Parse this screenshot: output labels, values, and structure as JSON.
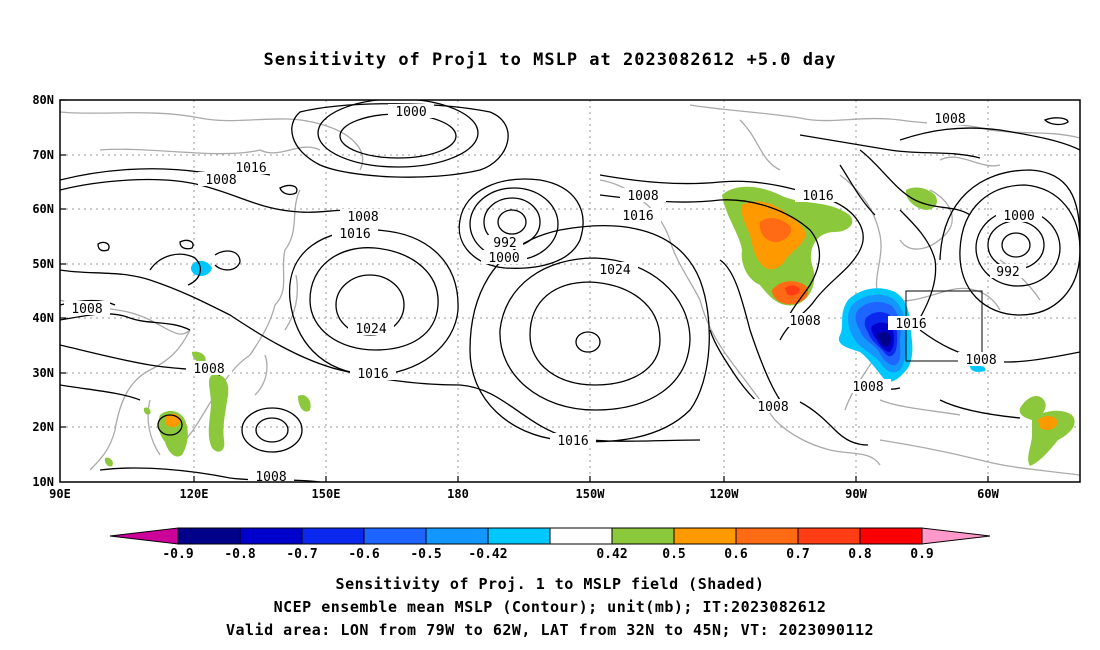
{
  "title": "Sensitivity of Proj1 to MSLP at 2023082612 +5.0 day",
  "map": {
    "lon_range": [
      "90E",
      "60W+"
    ],
    "lat_range": [
      "10N",
      "80N"
    ],
    "y_ticks": [
      "80N",
      "70N",
      "60N",
      "50N",
      "40N",
      "30N",
      "20N",
      "10N"
    ],
    "x_ticks": [
      "90E",
      "120E",
      "150E",
      "180",
      "150W",
      "120W",
      "90W",
      "60W"
    ],
    "contour_labels": [
      {
        "text": "1000",
        "name": "label-1000-north-pacific"
      },
      {
        "text": "1008",
        "name": "label-1008-east-canada"
      },
      {
        "text": "1016",
        "name": "label-1016-siberia"
      },
      {
        "text": "1008",
        "name": "label-1008-siberia"
      },
      {
        "text": "1016",
        "name": "label-1016-alaska"
      },
      {
        "text": "1008",
        "name": "label-1008-gulf-alaska"
      },
      {
        "text": "1016",
        "name": "label-1016-gulf-alaska"
      },
      {
        "text": "1008",
        "name": "label-1008-east-asia"
      },
      {
        "text": "1016",
        "name": "label-1016-east-asia"
      },
      {
        "text": "992",
        "name": "label-992-aleutian-low"
      },
      {
        "text": "1000",
        "name": "label-1000-aleutian-low"
      },
      {
        "text": "1024",
        "name": "label-1024-north-pacific-high"
      },
      {
        "text": "1024",
        "name": "label-1024-west-pacific-high"
      },
      {
        "text": "1000",
        "name": "label-1000-labrador-low"
      },
      {
        "text": "992",
        "name": "label-992-labrador-low"
      },
      {
        "text": "1008",
        "name": "label-1008-china"
      },
      {
        "text": "1008",
        "name": "label-1008-rockies"
      },
      {
        "text": "1016",
        "name": "label-1016-us-east-coast"
      },
      {
        "text": "1016",
        "name": "label-1016-subtropical-pacific"
      },
      {
        "text": "1008",
        "name": "label-1008-philippine-sea"
      },
      {
        "text": "1008",
        "name": "label-1008-southeast-us"
      },
      {
        "text": "1008",
        "name": "label-1008-atlantic"
      },
      {
        "text": "1008",
        "name": "label-1008-mexico"
      },
      {
        "text": "1008",
        "name": "label-1008-south-china-sea"
      },
      {
        "text": "1016",
        "name": "label-1016-south-pacific"
      }
    ],
    "valid_area_box": {
      "lon": [
        "79W",
        "62W"
      ],
      "lat": [
        "32N",
        "45N"
      ]
    }
  },
  "colorbar": {
    "labels": [
      "-0.9",
      "-0.8",
      "-0.7",
      "-0.6",
      "-0.5",
      "-0.42",
      "0.42",
      "0.5",
      "0.6",
      "0.7",
      "0.8",
      "0.9"
    ],
    "colors": [
      "#00008b",
      "#0000cd",
      "#0a28ee",
      "#1e64ff",
      "#1496ff",
      "#00c8ff",
      "#ffffff",
      "#8cc83c",
      "#ff9900",
      "#ff6a14",
      "#ff3c14",
      "#ff0000"
    ],
    "low_end_color": "#cc0099",
    "high_end_color": "#ff99cc"
  },
  "captions": {
    "line1": "Sensitivity of Proj. 1 to MSLP field (Shaded)",
    "line2": "NCEP ensemble mean MSLP (Contour); unit(mb); IT:2023082612",
    "line3": "Valid area: LON from 79W to 62W, LAT from 32N to 45N; VT: 2023090112"
  }
}
